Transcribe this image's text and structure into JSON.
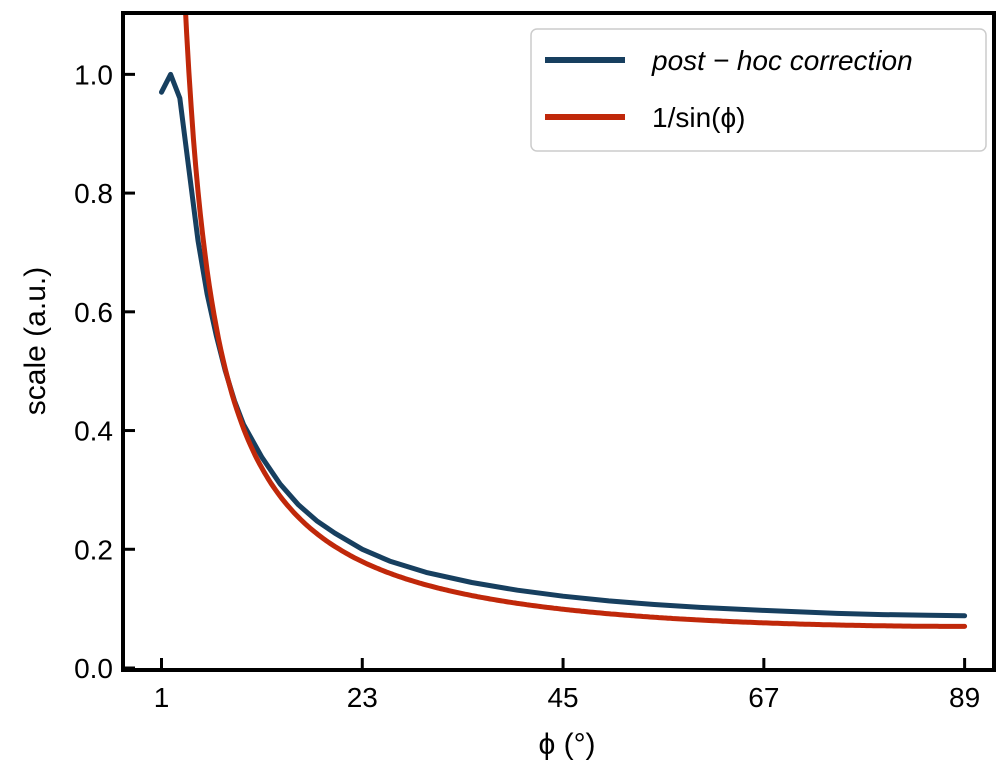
{
  "chart_data": {
    "type": "line",
    "title": "",
    "xlabel": "ϕ (°)",
    "ylabel": "scale (a.u.)",
    "xlim": [
      -3,
      92
    ],
    "ylim": [
      0,
      1.1
    ],
    "xticks": [
      1,
      23,
      45,
      67,
      89
    ],
    "yticks": [
      0.0,
      0.2,
      0.4,
      0.6,
      0.8,
      1.0
    ],
    "xtick_labels": [
      "1",
      "23",
      "45",
      "67",
      "89"
    ],
    "ytick_labels": [
      "0.0",
      "0.2",
      "0.4",
      "0.6",
      "0.8",
      "1.0"
    ],
    "grid": false,
    "legend_position": "top-right",
    "series": [
      {
        "name": "post − hoc correction",
        "color": "#173f5f",
        "x": [
          1,
          2,
          3,
          4,
          5,
          6,
          7,
          8,
          9,
          10,
          12,
          14,
          16,
          18,
          20,
          23,
          26,
          30,
          35,
          40,
          45,
          50,
          55,
          60,
          67,
          75,
          80,
          85,
          89
        ],
        "y": [
          0.97,
          1.0,
          0.96,
          0.84,
          0.72,
          0.63,
          0.56,
          0.5,
          0.45,
          0.41,
          0.355,
          0.31,
          0.275,
          0.248,
          0.227,
          0.2,
          0.18,
          0.161,
          0.144,
          0.131,
          0.121,
          0.113,
          0.107,
          0.102,
          0.097,
          0.092,
          0.09,
          0.089,
          0.088
        ]
      },
      {
        "name": "1/sin(ϕ)",
        "color": "#c0280a",
        "function": "k/sin(phi)",
        "k": 0.07,
        "x_range": [
          1,
          89
        ]
      }
    ]
  }
}
